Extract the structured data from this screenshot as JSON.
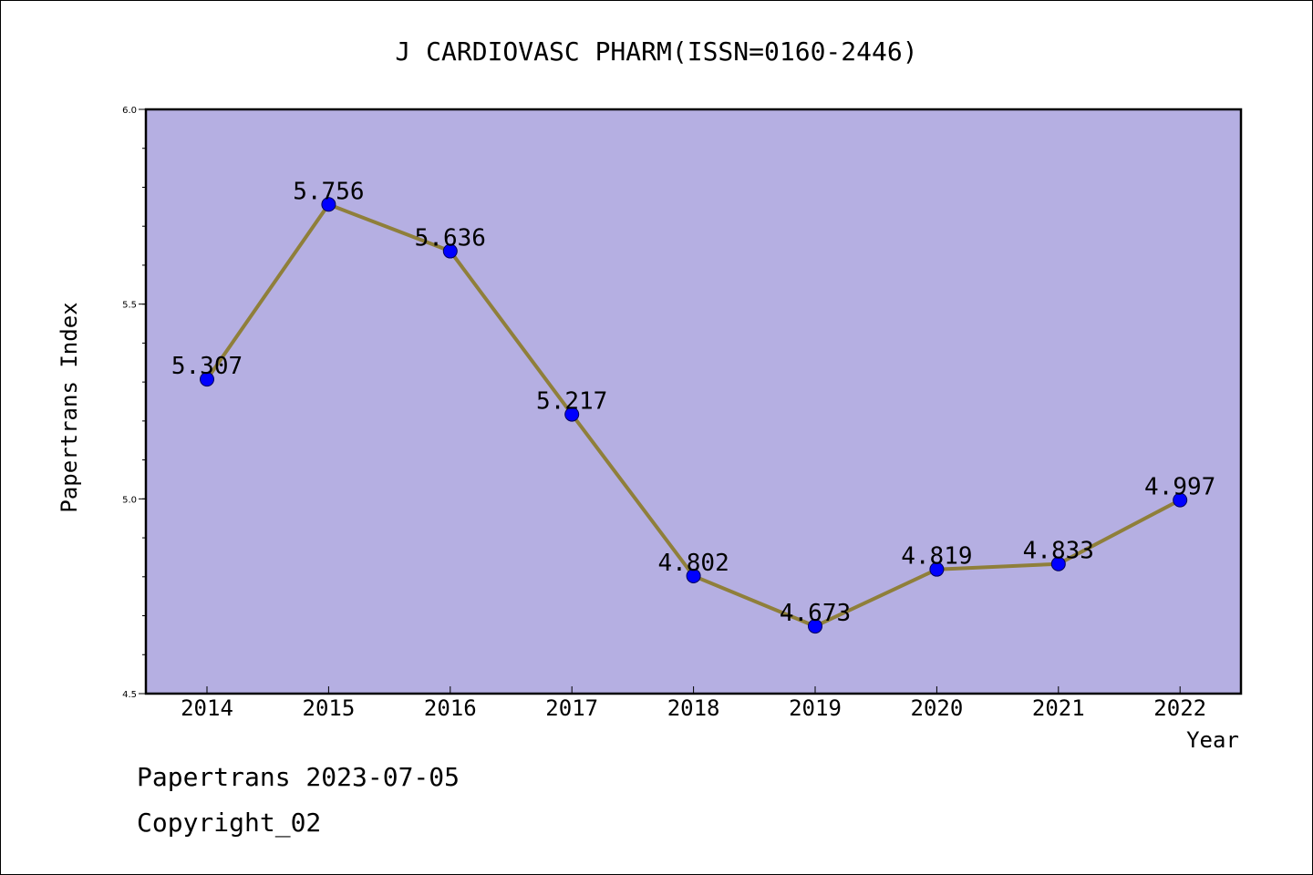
{
  "chart_data": {
    "type": "line",
    "title": "J CARDIOVASC PHARM(ISSN=0160-2446)",
    "xlabel": "Year",
    "ylabel": "Papertrans Index",
    "categories": [
      "2014",
      "2015",
      "2016",
      "2017",
      "2018",
      "2019",
      "2020",
      "2021",
      "2022"
    ],
    "values": [
      5.307,
      5.756,
      5.636,
      5.217,
      4.802,
      4.673,
      4.819,
      4.833,
      4.997
    ],
    "data_labels": [
      "5.307",
      "5.756",
      "5.636",
      "5.217",
      "4.802",
      "4.673",
      "4.819",
      "4.833",
      "4.997"
    ],
    "ylim": [
      4.5,
      6.0
    ],
    "y_ticks": [
      "4.5",
      "5.0",
      "5.5",
      "6.0"
    ],
    "grid": false,
    "legend": "none",
    "colors": {
      "plot_background": "#b5afe2",
      "line": "#8f7f3a",
      "marker": "#0000ff"
    }
  },
  "footer": {
    "line1": "Papertrans 2023-07-05",
    "line2": "Copyright_02"
  }
}
